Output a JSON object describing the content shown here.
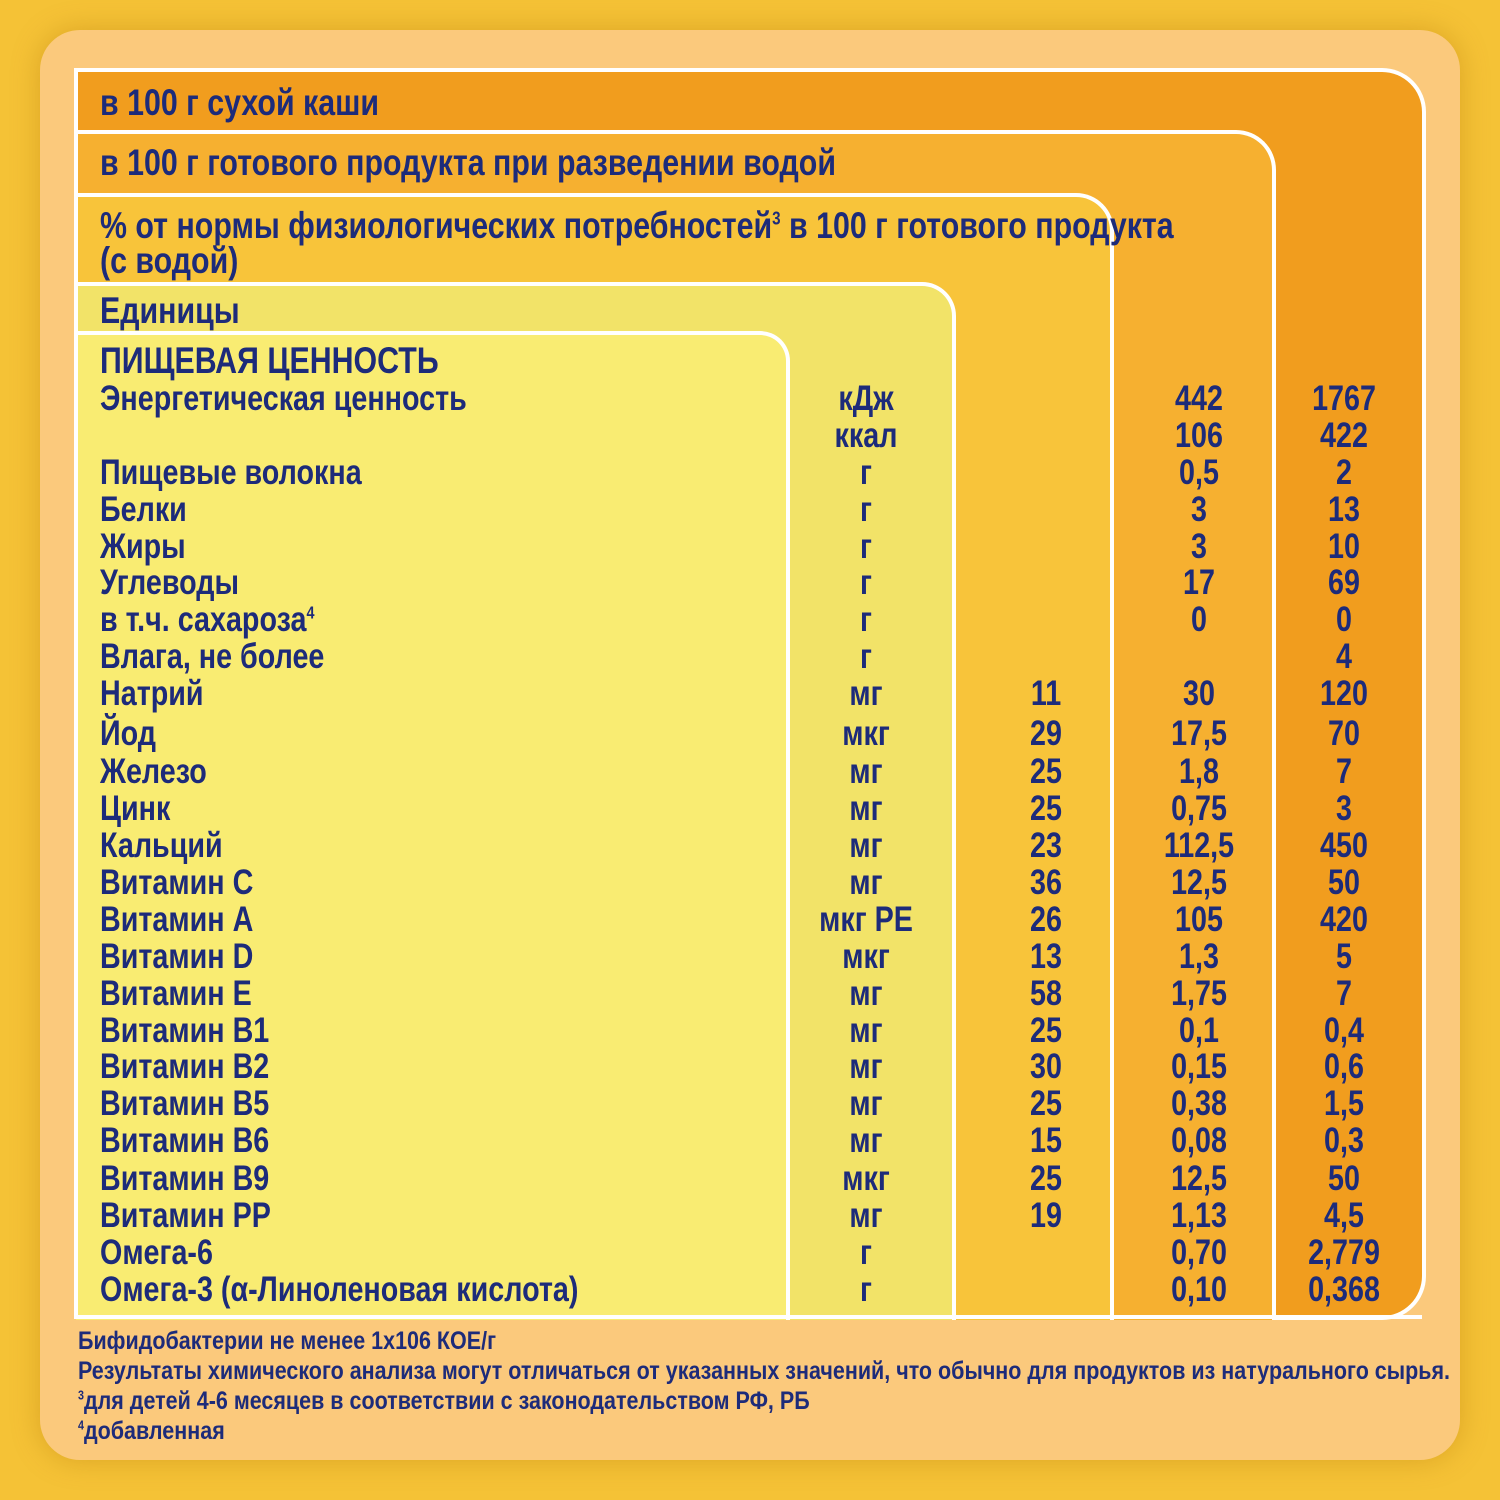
{
  "headers": {
    "dry": "в 100 г сухой каши",
    "ready": "в 100 г готового продукта при разведении водой",
    "norm_line1": "% от нормы физиологических потребностей",
    "norm_sup": "3",
    "norm_line1_tail": " в 100 г готового продукта",
    "norm_line2": "(с водой)",
    "units": "Единицы",
    "section": "ПИЩЕВАЯ ЦЕННОСТЬ"
  },
  "rows": [
    {
      "name": "Энергетическая ценность",
      "unit": "кДж",
      "norm": "",
      "ready": "442",
      "dry": "1767"
    },
    {
      "name": "",
      "unit": "ккал",
      "norm": "",
      "ready": "106",
      "dry": "422"
    },
    {
      "name": "Пищевые волокна",
      "unit": "г",
      "norm": "",
      "ready": "0,5",
      "dry": "2"
    },
    {
      "name": "Белки",
      "unit": "г",
      "norm": "",
      "ready": "3",
      "dry": "13"
    },
    {
      "name": "Жиры",
      "unit": "г",
      "norm": "",
      "ready": "3",
      "dry": "10"
    },
    {
      "name": "Углеводы",
      "unit": "г",
      "norm": "",
      "ready": "17",
      "dry": "69"
    },
    {
      "name": "в т.ч. сахароза",
      "sup": "4",
      "unit": "г",
      "norm": "",
      "ready": "0",
      "dry": "0"
    },
    {
      "name": "Влага, не более",
      "unit": "г",
      "norm": "",
      "ready": "",
      "dry": "4"
    },
    {
      "name": "Натрий",
      "unit": "мг",
      "norm": "11",
      "ready": "30",
      "dry": "120"
    },
    {
      "name": "Йод",
      "unit": "мкг",
      "norm": "29",
      "ready": "17,5",
      "dry": "70"
    },
    {
      "name": "Железо",
      "unit": "мг",
      "norm": "25",
      "ready": "1,8",
      "dry": "7"
    },
    {
      "name": "Цинк",
      "unit": "мг",
      "norm": "25",
      "ready": "0,75",
      "dry": "3"
    },
    {
      "name": "Кальций",
      "unit": "мг",
      "norm": "23",
      "ready": "112,5",
      "dry": "450"
    },
    {
      "name": "Витамин  С",
      "unit": "мг",
      "norm": "36",
      "ready": "12,5",
      "dry": "50"
    },
    {
      "name": "Витамин  А",
      "unit": "мкг РЕ",
      "norm": "26",
      "ready": "105",
      "dry": "420"
    },
    {
      "name": "Витамин  D",
      "unit": "мкг",
      "norm": "13",
      "ready": "1,3",
      "dry": "5"
    },
    {
      "name": "Витамин  Е",
      "unit": "мг",
      "norm": "58",
      "ready": "1,75",
      "dry": "7"
    },
    {
      "name": "Витамин  В1",
      "unit": "мг",
      "norm": "25",
      "ready": "0,1",
      "dry": "0,4"
    },
    {
      "name": "Витамин  В2",
      "unit": "мг",
      "norm": "30",
      "ready": "0,15",
      "dry": "0,6"
    },
    {
      "name": "Витамин  В5",
      "unit": "мг",
      "norm": "25",
      "ready": "0,38",
      "dry": "1,5"
    },
    {
      "name": "Витамин  В6",
      "unit": "мг",
      "norm": "15",
      "ready": "0,08",
      "dry": "0,3"
    },
    {
      "name": "Витамин  В9",
      "unit": "мкг",
      "norm": "25",
      "ready": "12,5",
      "dry": "50"
    },
    {
      "name": "Витамин  РР",
      "unit": "мг",
      "norm": "19",
      "ready": "1,13",
      "dry": "4,5"
    },
    {
      "name": "Омега-6",
      "unit": "г",
      "norm": "",
      "ready": "0,70",
      "dry": "2,779"
    },
    {
      "name": "Омега-3 (α-Линоленовая кислота)",
      "unit": "г",
      "norm": "",
      "ready": "0,10",
      "dry": "0,368"
    }
  ],
  "footnotes": {
    "bifido": "Бифидобактерии не менее 1х106 КОЕ/г",
    "disclaimer": "Результаты химического анализа могут отличаться от указанных значений, что обычно для продуктов из натурального сырья.",
    "note3_mark": "3",
    "note3": "для детей 4-6 месяцев в соответствии с законодательством РФ, РБ",
    "note4_mark": "4",
    "note4": "добавленная"
  }
}
